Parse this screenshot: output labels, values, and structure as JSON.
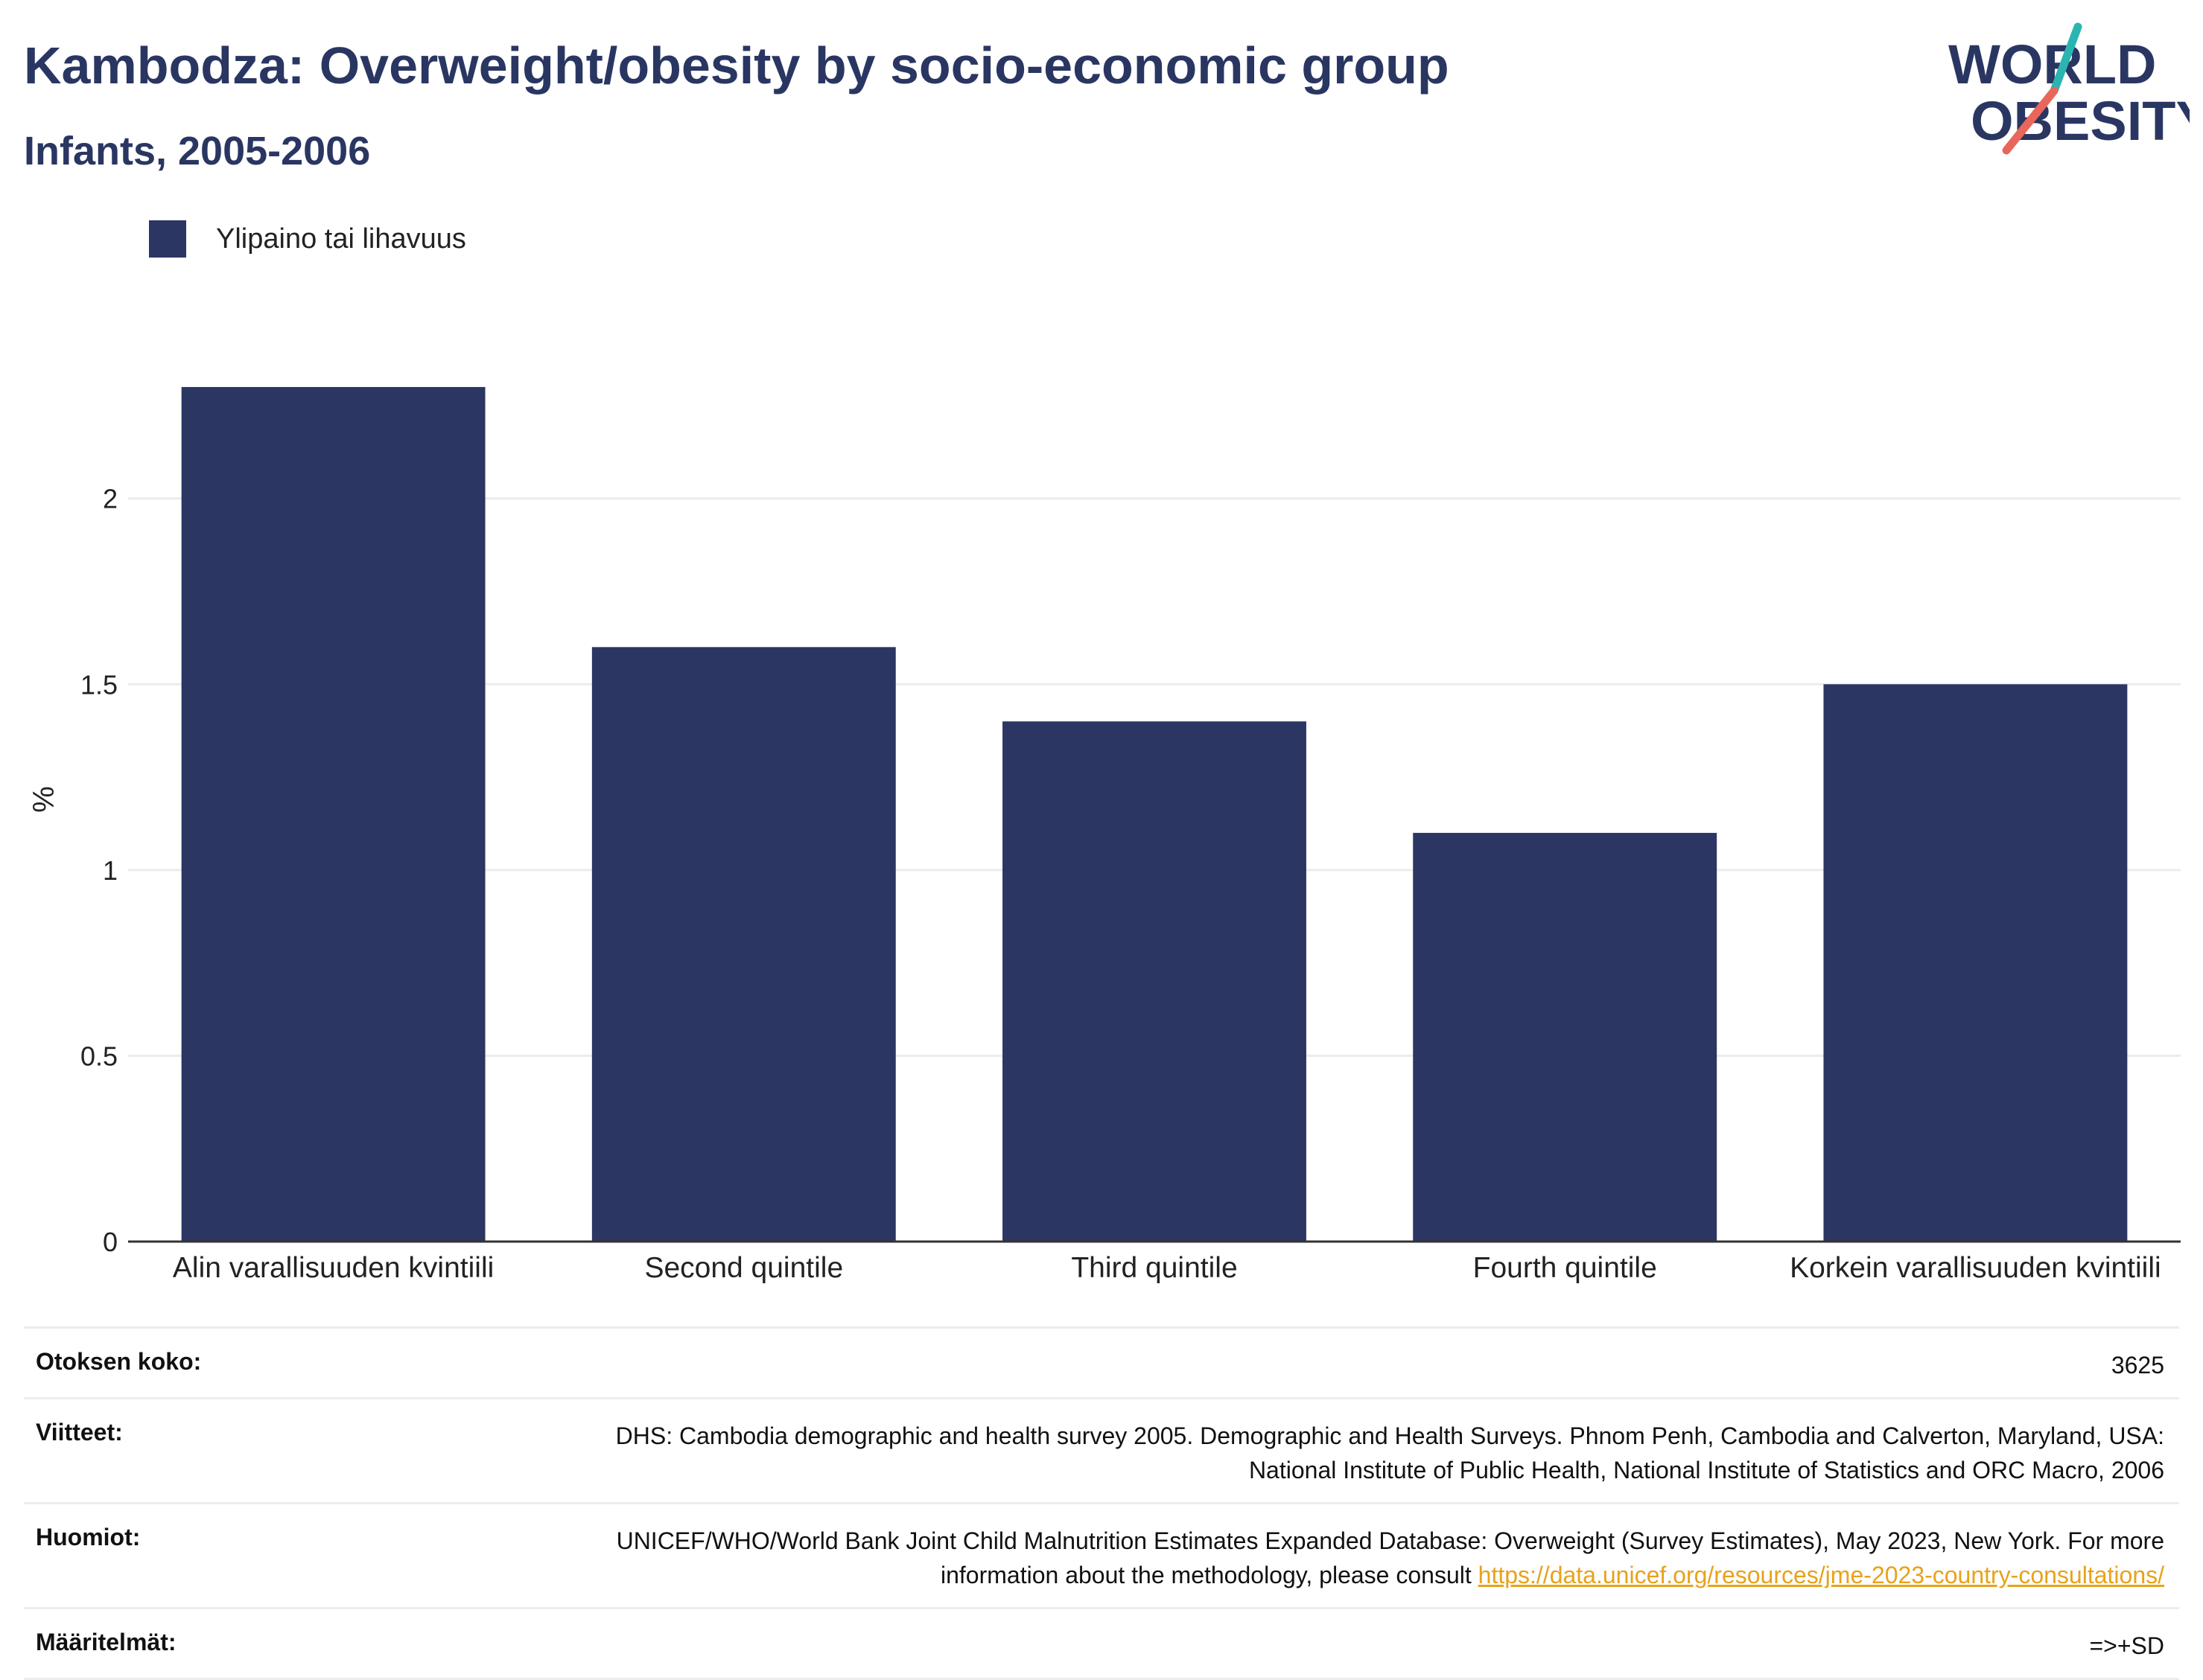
{
  "header": {
    "title": "Kambodza: Overweight/obesity by socio-economic group",
    "subtitle": "Infants, 2005-2006"
  },
  "logo": {
    "line1": "WORLD",
    "line2": "OBESITY",
    "accent_teal": "#2bb5b0",
    "accent_red": "#e9665a"
  },
  "colors": {
    "bar": "#2b3663",
    "grid": "#ebebf0",
    "axis": "#333333"
  },
  "chart_data": {
    "type": "bar",
    "categories": [
      "Alin varallisuuden kvintiili",
      "Second quintile",
      "Third quintile",
      "Fourth quintile",
      "Korkein varallisuuden kvintiili"
    ],
    "series": [
      {
        "name": "Ylipaino tai lihavuus",
        "values": [
          2.3,
          1.6,
          1.4,
          1.1,
          1.5
        ]
      }
    ],
    "ylabel": "%",
    "ylim": [
      0,
      2.38
    ],
    "yticks": [
      0,
      0.5,
      1,
      1.5,
      2
    ],
    "ytick_labels": [
      "0",
      "0.5",
      "1",
      "1.5",
      "2"
    ],
    "grid": true,
    "legend_position": "top-left"
  },
  "footer": {
    "sample_size_label": "Otoksen koko:",
    "sample_size_value": "3625",
    "references_label": "Viitteet:",
    "references_value": "DHS: Cambodia demographic and health survey 2005. Demographic and Health Surveys. Phnom Penh, Cambodia and Calverton, Maryland, USA: National Institute of Public Health, National Institute of Statistics and ORC Macro, 2006",
    "notes_label": "Huomiot:",
    "notes_value": "UNICEF/WHO/World Bank Joint Child Malnutrition Estimates Expanded Database: Overweight (Survey Estimates), May 2023, New York. For more information about the methodology, please consult",
    "notes_link": "https://data.unicef.org/resources/jme-2023-country-consultations/",
    "definitions_label": "Määritelmät:",
    "definitions_value": "=>+SD"
  }
}
